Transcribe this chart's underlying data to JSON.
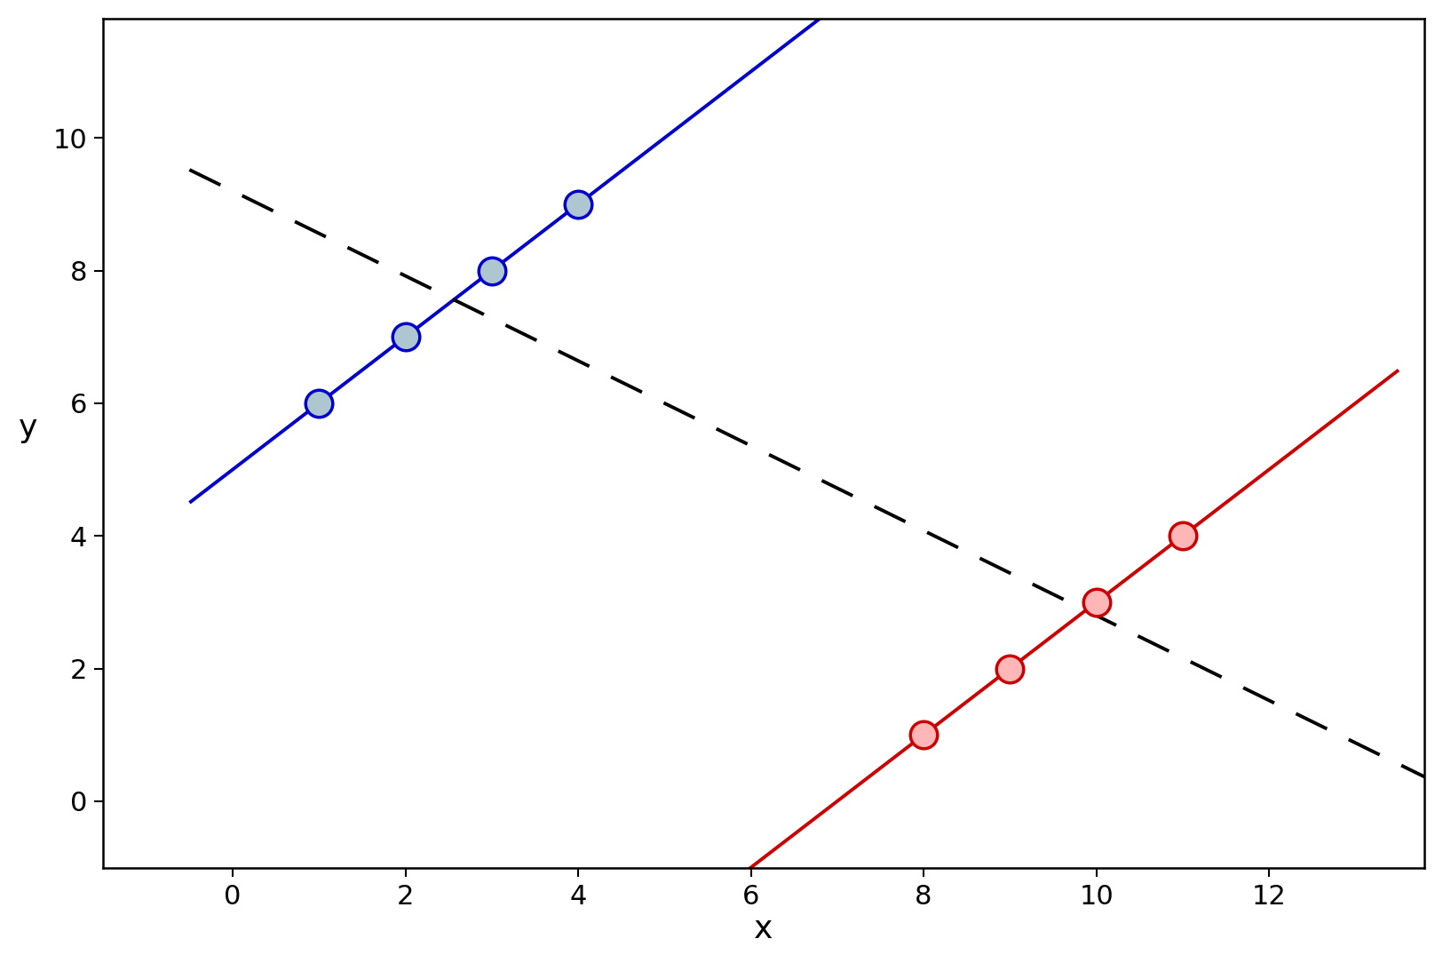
{
  "blue_points": [
    [
      1,
      6
    ],
    [
      2,
      7
    ],
    [
      3,
      8
    ],
    [
      4,
      9
    ]
  ],
  "red_points": [
    [
      8,
      1
    ],
    [
      9,
      2
    ],
    [
      10,
      3
    ],
    [
      11,
      4
    ]
  ],
  "blue_line": {
    "slope": 1.0,
    "intercept": 5.0,
    "x_range": [
      -0.5,
      13.5
    ]
  },
  "red_line": {
    "slope": 1.0,
    "intercept": -7.0,
    "x_range": [
      5.8,
      13.5
    ]
  },
  "dashed_line": {
    "slope": -0.64,
    "intercept": 9.2,
    "x_range": [
      -0.5,
      13.8
    ]
  },
  "blue_color": "#0000cc",
  "blue_fill": "#aec6cf",
  "red_color": "#cc0000",
  "red_fill": "#ffb6b6",
  "dashed_color": "#000000",
  "xlim": [
    -1.5,
    13.8
  ],
  "ylim": [
    -1.0,
    11.8
  ],
  "xticks": [
    0,
    2,
    4,
    6,
    8,
    10,
    12
  ],
  "yticks": [
    0,
    2,
    4,
    6,
    8,
    10
  ],
  "xlabel": "x",
  "ylabel": "y",
  "marker_size": 22,
  "line_width": 2.8,
  "dashed_linewidth": 2.8,
  "tick_fontsize": 22,
  "axis_label_fontsize": 26
}
